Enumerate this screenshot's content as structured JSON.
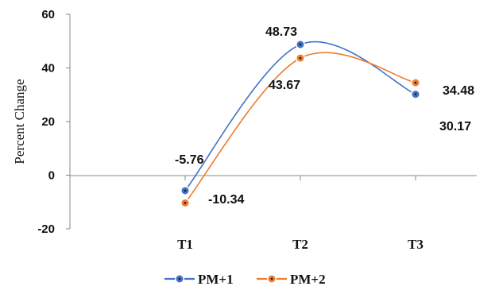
{
  "chart_data": {
    "type": "line",
    "ylabel": "Percent Change",
    "xlabel": "",
    "categories": [
      "T1",
      "T2",
      "T3"
    ],
    "ylim": [
      -20,
      60
    ],
    "yticks": [
      -20,
      0,
      20,
      40,
      60
    ],
    "grid": false,
    "smooth": true,
    "legend": "bottom",
    "series": [
      {
        "name": "PM+1",
        "values": [
          -5.76,
          48.73,
          30.17
        ],
        "labels": [
          "-5.76",
          "48.73",
          "30.17"
        ],
        "color": "#4472C4"
      },
      {
        "name": "PM+2",
        "values": [
          -10.34,
          43.67,
          34.48
        ],
        "labels": [
          "-10.34",
          "43.67",
          "34.48"
        ],
        "color": "#ED7D31"
      }
    ]
  }
}
